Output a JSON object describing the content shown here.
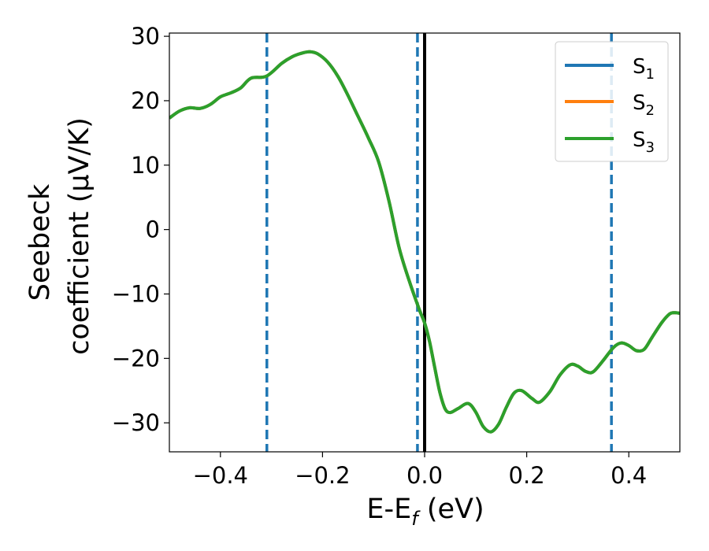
{
  "chart_data": {
    "type": "line",
    "title": "",
    "xlabel": "E-E_f (eV)",
    "xlabel_main": "E-E",
    "xlabel_sub": "f",
    "xlabel_tail": " (eV)",
    "ylabel_line1": "Seebeck",
    "ylabel_line2": "coefficient  (μV/K)",
    "xlim": [
      -0.5,
      0.5
    ],
    "ylim": [
      -34.5,
      30.5
    ],
    "xticks": [
      -0.4,
      -0.2,
      0.0,
      0.2,
      0.4
    ],
    "xtick_labels": [
      "−0.4",
      "−0.2",
      "0.0",
      "0.2",
      "0.4"
    ],
    "yticks": [
      -30,
      -20,
      -10,
      0,
      10,
      20,
      30
    ],
    "ytick_labels": [
      "−30",
      "−20",
      "−10",
      "0",
      "10",
      "20",
      "30"
    ],
    "grid": false,
    "legend_position": "top-right",
    "series": [
      {
        "name": "S",
        "sub": "1",
        "color": "#1f77b4"
      },
      {
        "name": "S",
        "sub": "2",
        "color": "#ff7f0e"
      },
      {
        "name": "S",
        "sub": "3",
        "color": "#2ca02c"
      }
    ],
    "curve_color": "#2ca02c",
    "curve_points": [
      [
        -0.5,
        17.3
      ],
      [
        -0.48,
        18.4
      ],
      [
        -0.46,
        18.9
      ],
      [
        -0.44,
        18.8
      ],
      [
        -0.42,
        19.4
      ],
      [
        -0.4,
        20.6
      ],
      [
        -0.38,
        21.2
      ],
      [
        -0.36,
        22.0
      ],
      [
        -0.34,
        23.5
      ],
      [
        -0.31,
        23.8
      ],
      [
        -0.28,
        25.8
      ],
      [
        -0.26,
        26.8
      ],
      [
        -0.24,
        27.4
      ],
      [
        -0.225,
        27.6
      ],
      [
        -0.21,
        27.3
      ],
      [
        -0.19,
        26.0
      ],
      [
        -0.17,
        23.8
      ],
      [
        -0.15,
        20.8
      ],
      [
        -0.13,
        17.5
      ],
      [
        -0.11,
        14.2
      ],
      [
        -0.09,
        10.5
      ],
      [
        -0.07,
        4.5
      ],
      [
        -0.05,
        -2.8
      ],
      [
        -0.03,
        -8.0
      ],
      [
        -0.01,
        -12.5
      ],
      [
        0.0,
        -14.5
      ],
      [
        0.01,
        -17.5
      ],
      [
        0.02,
        -21.5
      ],
      [
        0.03,
        -25.3
      ],
      [
        0.04,
        -27.8
      ],
      [
        0.05,
        -28.4
      ],
      [
        0.065,
        -27.8
      ],
      [
        0.085,
        -27.0
      ],
      [
        0.1,
        -28.3
      ],
      [
        0.115,
        -30.6
      ],
      [
        0.13,
        -31.4
      ],
      [
        0.145,
        -30.2
      ],
      [
        0.16,
        -27.6
      ],
      [
        0.175,
        -25.4
      ],
      [
        0.19,
        -25.0
      ],
      [
        0.21,
        -26.2
      ],
      [
        0.225,
        -26.8
      ],
      [
        0.245,
        -25.2
      ],
      [
        0.265,
        -22.6
      ],
      [
        0.285,
        -21.0
      ],
      [
        0.3,
        -21.2
      ],
      [
        0.315,
        -22.0
      ],
      [
        0.33,
        -22.1
      ],
      [
        0.35,
        -20.3
      ],
      [
        0.37,
        -18.3
      ],
      [
        0.385,
        -17.6
      ],
      [
        0.4,
        -18.0
      ],
      [
        0.415,
        -18.8
      ],
      [
        0.43,
        -18.6
      ],
      [
        0.445,
        -16.8
      ],
      [
        0.465,
        -14.4
      ],
      [
        0.48,
        -13.1
      ],
      [
        0.49,
        -12.9
      ],
      [
        0.5,
        -13.0
      ]
    ],
    "vlines_dashed": [
      -0.309,
      -0.014,
      0.366
    ],
    "vline_dashed_color": "#1f77b4",
    "vline_solid": 0.0,
    "vline_solid_color": "#000000"
  }
}
